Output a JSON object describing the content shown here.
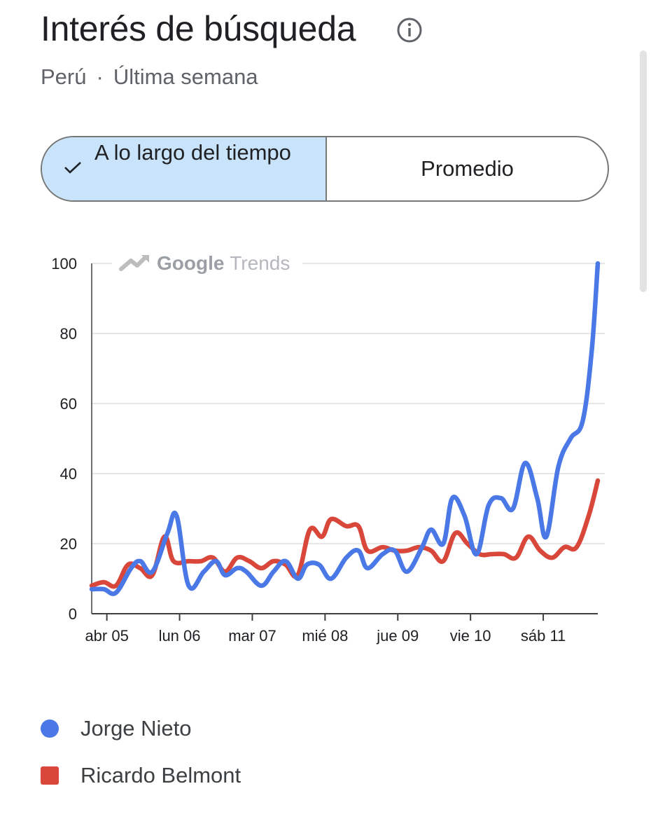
{
  "header": {
    "title": "Interés de búsqueda",
    "subtitle_region": "Perú",
    "subtitle_separator": "·",
    "subtitle_period": "Última semana"
  },
  "toggle": {
    "options": [
      {
        "label": "A lo largo del tiempo",
        "selected": true
      },
      {
        "label": "Promedio",
        "selected": false
      }
    ]
  },
  "colors": {
    "accent_bg": "#c9e3fb",
    "series_1": "#4a78e6",
    "series_2": "#d8473a"
  },
  "watermark": "Google Trends",
  "chart_data": {
    "type": "line",
    "ylim": [
      0,
      100
    ],
    "yticks": [
      0,
      20,
      40,
      60,
      80,
      100
    ],
    "xlim": [
      0,
      167
    ],
    "x_tick_labels": [
      {
        "label": "abr 05",
        "x": 5
      },
      {
        "label": "lun 06",
        "x": 29
      },
      {
        "label": "mar 07",
        "x": 53
      },
      {
        "label": "mié 08",
        "x": 77
      },
      {
        "label": "jue 09",
        "x": 101
      },
      {
        "label": "vie 10",
        "x": 125
      },
      {
        "label": "sáb 11",
        "x": 149
      }
    ],
    "grid": "horizontal",
    "series": [
      {
        "name": "Jorge Nieto",
        "color": "#4a78e6",
        "points": [
          [
            0,
            7
          ],
          [
            4,
            7
          ],
          [
            8,
            6
          ],
          [
            13,
            13
          ],
          [
            16,
            15
          ],
          [
            20,
            12
          ],
          [
            25,
            23
          ],
          [
            28,
            28
          ],
          [
            32,
            8
          ],
          [
            37,
            12
          ],
          [
            41,
            15
          ],
          [
            44,
            11
          ],
          [
            48,
            13
          ],
          [
            51,
            12
          ],
          [
            56,
            8
          ],
          [
            60,
            12
          ],
          [
            64,
            15
          ],
          [
            68,
            10
          ],
          [
            71,
            14
          ],
          [
            75,
            14
          ],
          [
            79,
            10
          ],
          [
            84,
            16
          ],
          [
            88,
            18
          ],
          [
            91,
            13
          ],
          [
            96,
            17
          ],
          [
            100,
            18
          ],
          [
            104,
            12
          ],
          [
            109,
            19
          ],
          [
            112,
            24
          ],
          [
            116,
            20
          ],
          [
            119,
            33
          ],
          [
            123,
            28
          ],
          [
            127,
            17
          ],
          [
            131,
            31
          ],
          [
            135,
            33
          ],
          [
            139,
            30
          ],
          [
            143,
            43
          ],
          [
            147,
            33
          ],
          [
            150,
            22
          ],
          [
            154,
            42
          ],
          [
            158,
            50
          ],
          [
            162,
            55
          ],
          [
            165,
            75
          ],
          [
            167,
            100
          ]
        ]
      },
      {
        "name": "Ricardo Belmont",
        "color": "#d8473a",
        "points": [
          [
            0,
            8
          ],
          [
            4,
            9
          ],
          [
            8,
            8
          ],
          [
            12,
            14
          ],
          [
            16,
            13
          ],
          [
            20,
            11
          ],
          [
            24,
            22
          ],
          [
            27,
            15
          ],
          [
            32,
            15
          ],
          [
            36,
            15
          ],
          [
            40,
            16
          ],
          [
            44,
            12
          ],
          [
            48,
            16
          ],
          [
            52,
            15
          ],
          [
            56,
            13
          ],
          [
            60,
            15
          ],
          [
            64,
            14
          ],
          [
            68,
            11
          ],
          [
            72,
            24
          ],
          [
            76,
            22
          ],
          [
            79,
            27
          ],
          [
            84,
            25
          ],
          [
            88,
            25
          ],
          [
            91,
            18
          ],
          [
            96,
            19
          ],
          [
            100,
            18
          ],
          [
            104,
            18
          ],
          [
            108,
            19
          ],
          [
            112,
            18
          ],
          [
            116,
            15
          ],
          [
            120,
            23
          ],
          [
            124,
            20
          ],
          [
            128,
            17
          ],
          [
            132,
            17
          ],
          [
            136,
            17
          ],
          [
            140,
            16
          ],
          [
            144,
            22
          ],
          [
            148,
            18
          ],
          [
            152,
            16
          ],
          [
            156,
            19
          ],
          [
            160,
            19
          ],
          [
            164,
            28
          ],
          [
            167,
            38
          ]
        ]
      }
    ]
  }
}
